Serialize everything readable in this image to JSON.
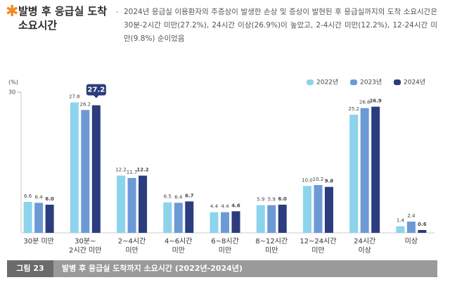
{
  "header": {
    "title": "발병 후 응급실 도착 소요시간",
    "bullet": "·",
    "body": "2024년 응급실 이용환자의 주증상이 발생한 손상 및 증상이 발현된 후 응급실까지의 도착 소요시간은 30분-2시간 미만(27.2%), 24시간 이상(26.9%)이 높았고, 2-4시간 미만(12.2%), 12-24시간 미만(9.8%) 순이었음"
  },
  "chart_data": {
    "type": "bar",
    "y_label": "(%)",
    "categories": [
      "30분 미만",
      "30분~\n2시간 미만",
      "2~4시간\n미만",
      "4~6시간\n미만",
      "6~8시간\n미만",
      "8~12시간\n미만",
      "12~24시간\n미만",
      "24시간\n이상",
      "미상"
    ],
    "series": [
      {
        "name": "2022년",
        "color": "#8dd3ec",
        "values": [
          6.6,
          27.8,
          12.2,
          6.5,
          4.4,
          5.9,
          10.0,
          25.2,
          1.4
        ],
        "value_labels": [
          "6.6",
          "27.8",
          "12.2",
          "6.5",
          "4.4",
          "5.9",
          "10.0",
          "25.2",
          "1.4"
        ]
      },
      {
        "name": "2023년",
        "color": "#6b9ad6",
        "values": [
          6.4,
          26.2,
          11.7,
          6.4,
          4.4,
          5.9,
          10.2,
          26.6,
          2.4
        ],
        "value_labels": [
          "6.4",
          "26.2",
          "11.7",
          "6.4",
          "4.4",
          "5.9",
          "10.2",
          "26.6",
          "2.4"
        ]
      },
      {
        "name": "2024년",
        "color": "#2b3d7e",
        "values": [
          6.0,
          27.2,
          12.2,
          6.7,
          4.6,
          6.0,
          9.8,
          26.9,
          0.6
        ],
        "value_labels": [
          "6.0",
          "27.2",
          "12.2",
          "6.7",
          "4.6",
          "6.0",
          "9.8",
          "26.9",
          "0.6"
        ]
      }
    ],
    "highlight": [
      2,
      1
    ],
    "ylim": [
      0,
      30
    ],
    "yticks": [
      30
    ],
    "legend": "top-right"
  },
  "figure": {
    "number": "그림 23",
    "caption": "발병 후 응급실 도착까지 소요시간 (2022년-2024년)"
  }
}
